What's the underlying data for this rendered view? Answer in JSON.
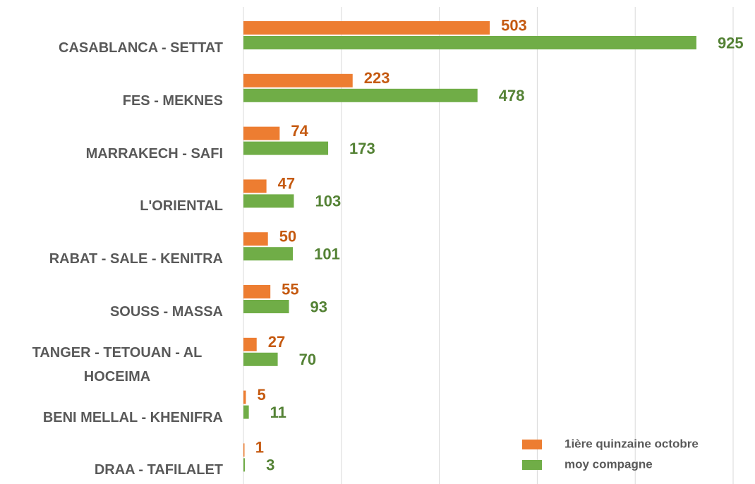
{
  "chart_data": {
    "type": "bar",
    "orientation": "horizontal",
    "categories": [
      "CASABLANCA - SETTAT",
      "FES - MEKNES",
      "MARRAKECH - SAFI",
      "L'ORIENTAL",
      "RABAT - SALE - KENITRA",
      "SOUSS - MASSA",
      "TANGER - TETOUAN - AL HOCEIMA",
      "BENI MELLAL - KHENIFRA",
      "DRAA - TAFILALET"
    ],
    "series": [
      {
        "name": "1ière quinzaine  octobre",
        "color": "#ed7d31",
        "label_color": "#c55a11",
        "values": [
          503,
          223,
          74,
          47,
          50,
          55,
          27,
          5,
          1
        ]
      },
      {
        "name": "moy compagne",
        "color": "#70ad47",
        "label_color": "#548235",
        "values": [
          925,
          478,
          173,
          103,
          101,
          93,
          70,
          11,
          3
        ]
      }
    ],
    "xlim": [
      0,
      1000
    ],
    "xticks": [
      0,
      200,
      400,
      600,
      800,
      1000
    ],
    "grid": true,
    "legend": "lower right"
  }
}
